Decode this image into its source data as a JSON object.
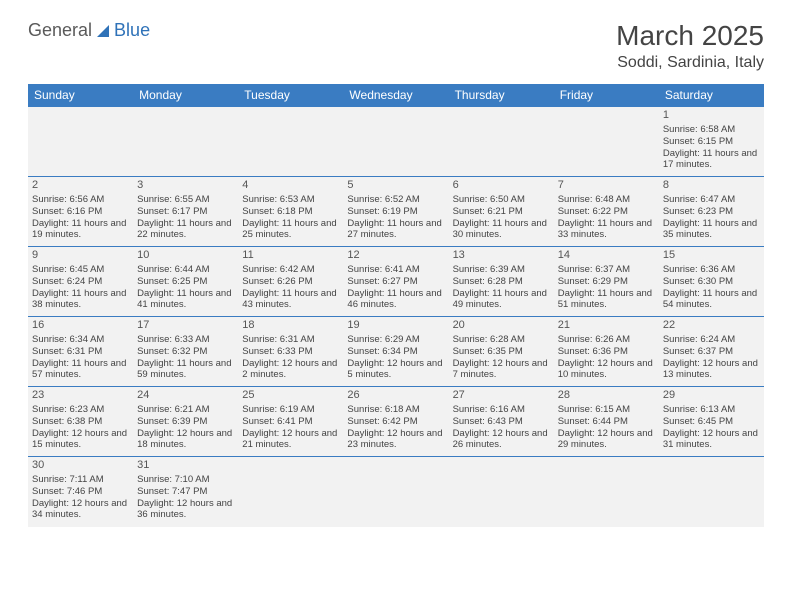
{
  "logo": {
    "part1": "General",
    "part2": "Blue"
  },
  "title": "March 2025",
  "location": "Soddi, Sardinia, Italy",
  "weekdays": [
    "Sunday",
    "Monday",
    "Tuesday",
    "Wednesday",
    "Thursday",
    "Friday",
    "Saturday"
  ],
  "colors": {
    "header_bg": "#3a7cc2",
    "header_text": "#ffffff",
    "cell_bg": "#f2f2f2",
    "border": "#3a7cc2",
    "logo_gray": "#5a5a5a",
    "logo_blue": "#2f72b8"
  },
  "weeks": [
    [
      null,
      null,
      null,
      null,
      null,
      null,
      {
        "day": "1",
        "sunrise": "Sunrise: 6:58 AM",
        "sunset": "Sunset: 6:15 PM",
        "daylight": "Daylight: 11 hours and 17 minutes."
      }
    ],
    [
      {
        "day": "2",
        "sunrise": "Sunrise: 6:56 AM",
        "sunset": "Sunset: 6:16 PM",
        "daylight": "Daylight: 11 hours and 19 minutes."
      },
      {
        "day": "3",
        "sunrise": "Sunrise: 6:55 AM",
        "sunset": "Sunset: 6:17 PM",
        "daylight": "Daylight: 11 hours and 22 minutes."
      },
      {
        "day": "4",
        "sunrise": "Sunrise: 6:53 AM",
        "sunset": "Sunset: 6:18 PM",
        "daylight": "Daylight: 11 hours and 25 minutes."
      },
      {
        "day": "5",
        "sunrise": "Sunrise: 6:52 AM",
        "sunset": "Sunset: 6:19 PM",
        "daylight": "Daylight: 11 hours and 27 minutes."
      },
      {
        "day": "6",
        "sunrise": "Sunrise: 6:50 AM",
        "sunset": "Sunset: 6:21 PM",
        "daylight": "Daylight: 11 hours and 30 minutes."
      },
      {
        "day": "7",
        "sunrise": "Sunrise: 6:48 AM",
        "sunset": "Sunset: 6:22 PM",
        "daylight": "Daylight: 11 hours and 33 minutes."
      },
      {
        "day": "8",
        "sunrise": "Sunrise: 6:47 AM",
        "sunset": "Sunset: 6:23 PM",
        "daylight": "Daylight: 11 hours and 35 minutes."
      }
    ],
    [
      {
        "day": "9",
        "sunrise": "Sunrise: 6:45 AM",
        "sunset": "Sunset: 6:24 PM",
        "daylight": "Daylight: 11 hours and 38 minutes."
      },
      {
        "day": "10",
        "sunrise": "Sunrise: 6:44 AM",
        "sunset": "Sunset: 6:25 PM",
        "daylight": "Daylight: 11 hours and 41 minutes."
      },
      {
        "day": "11",
        "sunrise": "Sunrise: 6:42 AM",
        "sunset": "Sunset: 6:26 PM",
        "daylight": "Daylight: 11 hours and 43 minutes."
      },
      {
        "day": "12",
        "sunrise": "Sunrise: 6:41 AM",
        "sunset": "Sunset: 6:27 PM",
        "daylight": "Daylight: 11 hours and 46 minutes."
      },
      {
        "day": "13",
        "sunrise": "Sunrise: 6:39 AM",
        "sunset": "Sunset: 6:28 PM",
        "daylight": "Daylight: 11 hours and 49 minutes."
      },
      {
        "day": "14",
        "sunrise": "Sunrise: 6:37 AM",
        "sunset": "Sunset: 6:29 PM",
        "daylight": "Daylight: 11 hours and 51 minutes."
      },
      {
        "day": "15",
        "sunrise": "Sunrise: 6:36 AM",
        "sunset": "Sunset: 6:30 PM",
        "daylight": "Daylight: 11 hours and 54 minutes."
      }
    ],
    [
      {
        "day": "16",
        "sunrise": "Sunrise: 6:34 AM",
        "sunset": "Sunset: 6:31 PM",
        "daylight": "Daylight: 11 hours and 57 minutes."
      },
      {
        "day": "17",
        "sunrise": "Sunrise: 6:33 AM",
        "sunset": "Sunset: 6:32 PM",
        "daylight": "Daylight: 11 hours and 59 minutes."
      },
      {
        "day": "18",
        "sunrise": "Sunrise: 6:31 AM",
        "sunset": "Sunset: 6:33 PM",
        "daylight": "Daylight: 12 hours and 2 minutes."
      },
      {
        "day": "19",
        "sunrise": "Sunrise: 6:29 AM",
        "sunset": "Sunset: 6:34 PM",
        "daylight": "Daylight: 12 hours and 5 minutes."
      },
      {
        "day": "20",
        "sunrise": "Sunrise: 6:28 AM",
        "sunset": "Sunset: 6:35 PM",
        "daylight": "Daylight: 12 hours and 7 minutes."
      },
      {
        "day": "21",
        "sunrise": "Sunrise: 6:26 AM",
        "sunset": "Sunset: 6:36 PM",
        "daylight": "Daylight: 12 hours and 10 minutes."
      },
      {
        "day": "22",
        "sunrise": "Sunrise: 6:24 AM",
        "sunset": "Sunset: 6:37 PM",
        "daylight": "Daylight: 12 hours and 13 minutes."
      }
    ],
    [
      {
        "day": "23",
        "sunrise": "Sunrise: 6:23 AM",
        "sunset": "Sunset: 6:38 PM",
        "daylight": "Daylight: 12 hours and 15 minutes."
      },
      {
        "day": "24",
        "sunrise": "Sunrise: 6:21 AM",
        "sunset": "Sunset: 6:39 PM",
        "daylight": "Daylight: 12 hours and 18 minutes."
      },
      {
        "day": "25",
        "sunrise": "Sunrise: 6:19 AM",
        "sunset": "Sunset: 6:41 PM",
        "daylight": "Daylight: 12 hours and 21 minutes."
      },
      {
        "day": "26",
        "sunrise": "Sunrise: 6:18 AM",
        "sunset": "Sunset: 6:42 PM",
        "daylight": "Daylight: 12 hours and 23 minutes."
      },
      {
        "day": "27",
        "sunrise": "Sunrise: 6:16 AM",
        "sunset": "Sunset: 6:43 PM",
        "daylight": "Daylight: 12 hours and 26 minutes."
      },
      {
        "day": "28",
        "sunrise": "Sunrise: 6:15 AM",
        "sunset": "Sunset: 6:44 PM",
        "daylight": "Daylight: 12 hours and 29 minutes."
      },
      {
        "day": "29",
        "sunrise": "Sunrise: 6:13 AM",
        "sunset": "Sunset: 6:45 PM",
        "daylight": "Daylight: 12 hours and 31 minutes."
      }
    ],
    [
      {
        "day": "30",
        "sunrise": "Sunrise: 7:11 AM",
        "sunset": "Sunset: 7:46 PM",
        "daylight": "Daylight: 12 hours and 34 minutes."
      },
      {
        "day": "31",
        "sunrise": "Sunrise: 7:10 AM",
        "sunset": "Sunset: 7:47 PM",
        "daylight": "Daylight: 12 hours and 36 minutes."
      },
      null,
      null,
      null,
      null,
      null
    ]
  ]
}
